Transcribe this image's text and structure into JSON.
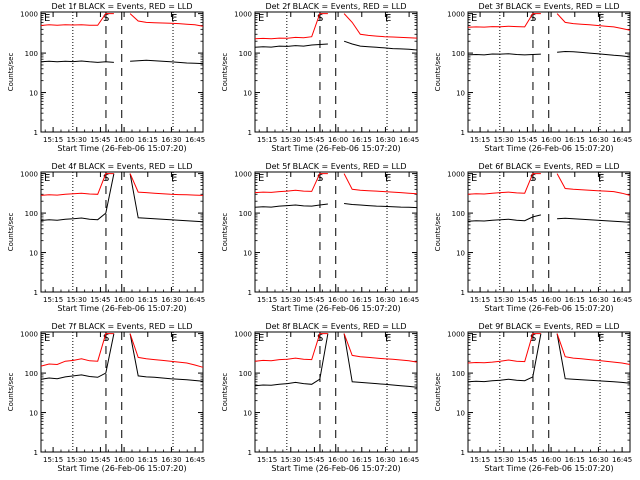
{
  "chart_data": [
    {
      "type": "line",
      "title": "Det 1f BLACK = Events, RED = LLD",
      "xlabel": "Start Time (26-Feb-06 15:07:20)",
      "ylabel": "Counts/sec",
      "xticks": [
        "15:15",
        "15:30",
        "15:45",
        "16:00",
        "16:15",
        "16:30",
        "16:45"
      ],
      "yticks": [
        "1",
        "10",
        "100",
        "1000"
      ],
      "ylog": true,
      "ylim": [
        1,
        1100
      ],
      "xlim": [
        "15:07:20",
        "16:50:00"
      ],
      "markers": [
        "E",
        "S",
        "E"
      ],
      "colors": {
        "events": "#000000",
        "lld": "#ff0000"
      },
      "series": [
        {
          "name": "BLACK = Events",
          "values": [
            60,
            62,
            60,
            62,
            61,
            63,
            60,
            58,
            60,
            58,
            "gap",
            62,
            64,
            66,
            64,
            62,
            60,
            58,
            56,
            55,
            54
          ]
        },
        {
          "name": "RED = LLD",
          "values": [
            500,
            520,
            510,
            520,
            515,
            525,
            510,
            505,
            1000,
            1000,
            "gap",
            1000,
            650,
            600,
            590,
            580,
            570,
            560,
            540,
            520,
            480
          ]
        }
      ]
    },
    {
      "type": "line",
      "title": "Det 2f BLACK = Events, RED = LLD",
      "xlabel": "Start Time (26-Feb-06 15:07:20)",
      "ylabel": "Counts/sec",
      "xticks": [
        "15:15",
        "15:30",
        "15:45",
        "16:00",
        "16:15",
        "16:30",
        "16:45"
      ],
      "yticks": [
        "1",
        "10",
        "100",
        "1000"
      ],
      "ylog": true,
      "ylim": [
        1,
        1100
      ],
      "xlim": [
        "15:07:20",
        "16:50:00"
      ],
      "markers": [
        "E",
        "S",
        "E"
      ],
      "colors": {
        "events": "#000000",
        "lld": "#ff0000"
      },
      "series": [
        {
          "name": "BLACK = Events",
          "values": [
            140,
            145,
            142,
            150,
            148,
            155,
            150,
            160,
            165,
            170,
            "gap",
            200,
            170,
            150,
            145,
            140,
            135,
            130,
            128,
            125,
            120
          ]
        },
        {
          "name": "RED = LLD",
          "values": [
            230,
            235,
            230,
            240,
            238,
            250,
            245,
            260,
            1000,
            1000,
            "gap",
            1000,
            600,
            300,
            280,
            270,
            260,
            255,
            250,
            245,
            240
          ]
        }
      ]
    },
    {
      "type": "line",
      "title": "Det 3f BLACK = Events, RED = LLD",
      "xlabel": "Start Time (26-Feb-06 15:07:20)",
      "ylabel": "Counts/sec",
      "xticks": [
        "15:15",
        "15:30",
        "15:45",
        "16:00",
        "16:15",
        "16:30",
        "16:45"
      ],
      "yticks": [
        "1",
        "10",
        "100",
        "1000"
      ],
      "ylog": true,
      "ylim": [
        1,
        1100
      ],
      "xlim": [
        "15:07:20",
        "16:50:00"
      ],
      "markers": [
        "E",
        "S",
        "E"
      ],
      "colors": {
        "events": "#000000",
        "lld": "#ff0000"
      },
      "series": [
        {
          "name": "BLACK = Events",
          "values": [
            90,
            92,
            90,
            95,
            94,
            96,
            92,
            90,
            92,
            94,
            "gap",
            105,
            110,
            108,
            104,
            100,
            96,
            92,
            88,
            85,
            80
          ]
        },
        {
          "name": "RED = LLD",
          "values": [
            450,
            460,
            455,
            470,
            465,
            480,
            470,
            460,
            1000,
            1000,
            "gap",
            1000,
            600,
            560,
            540,
            520,
            500,
            480,
            460,
            420,
            380
          ]
        }
      ]
    },
    {
      "type": "line",
      "title": "Det 4f BLACK = Events, RED = LLD",
      "xlabel": "Start Time (26-Feb-06 15:07:20)",
      "ylabel": "Counts/sec",
      "xticks": [
        "15:15",
        "15:30",
        "15:45",
        "16:00",
        "16:15",
        "16:30",
        "16:45"
      ],
      "yticks": [
        "1",
        "10",
        "100",
        "1000"
      ],
      "ylog": true,
      "ylim": [
        1,
        1100
      ],
      "xlim": [
        "15:07:20",
        "16:50:00"
      ],
      "markers": [
        "E",
        "S",
        "E"
      ],
      "colors": {
        "events": "#000000",
        "lld": "#ff0000"
      },
      "series": [
        {
          "name": "BLACK = Events",
          "values": [
            65,
            68,
            66,
            70,
            72,
            75,
            70,
            68,
            100,
            1000,
            "gap",
            1000,
            76,
            74,
            72,
            70,
            68,
            66,
            64,
            62,
            60
          ]
        },
        {
          "name": "RED = LLD",
          "values": [
            280,
            290,
            285,
            300,
            310,
            320,
            305,
            300,
            1000,
            1000,
            "gap",
            1000,
            340,
            330,
            320,
            310,
            300,
            295,
            290,
            285,
            280
          ]
        }
      ]
    },
    {
      "type": "line",
      "title": "Det 5f BLACK = Events, RED = LLD",
      "xlabel": "Start Time (26-Feb-06 15:07:20)",
      "ylabel": "Counts/sec",
      "xticks": [
        "15:15",
        "15:30",
        "15:45",
        "16:00",
        "16:15",
        "16:30",
        "16:45"
      ],
      "yticks": [
        "1",
        "10",
        "100",
        "1000"
      ],
      "ylog": true,
      "ylim": [
        1,
        1100
      ],
      "xlim": [
        "15:07:20",
        "16:50:00"
      ],
      "markers": [
        "E",
        "S",
        "E"
      ],
      "colors": {
        "events": "#000000",
        "lld": "#ff0000"
      },
      "series": [
        {
          "name": "BLACK = Events",
          "values": [
            140,
            145,
            142,
            150,
            155,
            160,
            152,
            150,
            160,
            170,
            "gap",
            175,
            165,
            160,
            155,
            150,
            148,
            145,
            142,
            140,
            138
          ]
        },
        {
          "name": "RED = LLD",
          "values": [
            330,
            340,
            335,
            350,
            360,
            380,
            360,
            355,
            1000,
            1000,
            "gap",
            1000,
            400,
            380,
            370,
            360,
            350,
            340,
            330,
            320,
            310
          ]
        }
      ]
    },
    {
      "type": "line",
      "title": "Det 6f BLACK = Events, RED = LLD",
      "xlabel": "Start Time (26-Feb-06 15:07:20)",
      "ylabel": "Counts/sec",
      "xticks": [
        "15:15",
        "15:30",
        "15:45",
        "16:00",
        "16:15",
        "16:30",
        "16:45"
      ],
      "yticks": [
        "1",
        "10",
        "100",
        "1000"
      ],
      "ylog": true,
      "ylim": [
        1,
        1100
      ],
      "xlim": [
        "15:07:20",
        "16:50:00"
      ],
      "markers": [
        "E",
        "S",
        "E"
      ],
      "colors": {
        "events": "#000000",
        "lld": "#ff0000"
      },
      "series": [
        {
          "name": "BLACK = Events",
          "values": [
            62,
            64,
            63,
            66,
            68,
            70,
            66,
            64,
            80,
            90,
            "gap",
            72,
            74,
            72,
            70,
            68,
            66,
            64,
            62,
            60,
            58
          ]
        },
        {
          "name": "RED = LLD",
          "values": [
            300,
            310,
            305,
            320,
            330,
            340,
            325,
            320,
            1000,
            1000,
            "gap",
            1000,
            420,
            400,
            390,
            380,
            370,
            360,
            350,
            320,
            280
          ]
        }
      ]
    },
    {
      "type": "line",
      "title": "Det 7f BLACK = Events, RED = LLD",
      "xlabel": "Start Time (26-Feb-06 15:07:20)",
      "ylabel": "Counts/sec",
      "xticks": [
        "15:15",
        "15:30",
        "15:45",
        "16:00",
        "16:15",
        "16:30",
        "16:45"
      ],
      "yticks": [
        "1",
        "10",
        "100",
        "1000"
      ],
      "ylog": true,
      "ylim": [
        1,
        1100
      ],
      "xlim": [
        "15:07:20",
        "16:50:00"
      ],
      "markers": [
        "E",
        "S",
        "E"
      ],
      "colors": {
        "events": "#000000",
        "lld": "#ff0000"
      },
      "series": [
        {
          "name": "BLACK = Events",
          "values": [
            70,
            75,
            72,
            80,
            85,
            90,
            82,
            78,
            100,
            1000,
            "gap",
            1000,
            85,
            80,
            78,
            75,
            72,
            70,
            68,
            65,
            62
          ]
        },
        {
          "name": "RED = LLD",
          "values": [
            150,
            170,
            165,
            200,
            210,
            230,
            205,
            200,
            1000,
            1000,
            "gap",
            1000,
            250,
            230,
            220,
            210,
            200,
            190,
            180,
            160,
            140
          ]
        }
      ]
    },
    {
      "type": "line",
      "title": "Det 8f BLACK = Events, RED = LLD",
      "xlabel": "Start Time (26-Feb-06 15:07:20)",
      "ylabel": "Counts/sec",
      "xticks": [
        "15:15",
        "15:30",
        "15:45",
        "16:00",
        "16:15",
        "16:30",
        "16:45"
      ],
      "yticks": [
        "1",
        "10",
        "100",
        "1000"
      ],
      "ylog": true,
      "ylim": [
        1,
        1100
      ],
      "xlim": [
        "15:07:20",
        "16:50:00"
      ],
      "markers": [
        "E",
        "S",
        "E"
      ],
      "colors": {
        "events": "#000000",
        "lld": "#ff0000"
      },
      "series": [
        {
          "name": "BLACK = Events",
          "values": [
            48,
            50,
            49,
            52,
            54,
            58,
            54,
            52,
            70,
            1000,
            "gap",
            1000,
            60,
            58,
            56,
            54,
            52,
            50,
            48,
            46,
            44
          ]
        },
        {
          "name": "RED = LLD",
          "values": [
            200,
            210,
            205,
            220,
            225,
            240,
            225,
            220,
            1000,
            1000,
            "gap",
            1000,
            280,
            260,
            250,
            240,
            230,
            225,
            215,
            205,
            190
          ]
        }
      ]
    },
    {
      "type": "line",
      "title": "Det 9f BLACK = Events, RED = LLD",
      "xlabel": "Start Time (26-Feb-06 15:07:20)",
      "ylabel": "Counts/sec",
      "xticks": [
        "15:15",
        "15:30",
        "15:45",
        "16:00",
        "16:15",
        "16:30",
        "16:45"
      ],
      "yticks": [
        "1",
        "10",
        "100",
        "1000"
      ],
      "ylog": true,
      "ylim": [
        1,
        1100
      ],
      "xlim": [
        "15:07:20",
        "16:50:00"
      ],
      "markers": [
        "E",
        "S",
        "E"
      ],
      "colors": {
        "events": "#000000",
        "lld": "#ff0000"
      },
      "series": [
        {
          "name": "BLACK = Events",
          "values": [
            60,
            62,
            61,
            64,
            66,
            70,
            66,
            64,
            80,
            1000,
            "gap",
            1000,
            72,
            70,
            68,
            66,
            64,
            62,
            60,
            58,
            55
          ]
        },
        {
          "name": "RED = LLD",
          "values": [
            180,
            185,
            182,
            190,
            200,
            215,
            200,
            195,
            1000,
            1000,
            "gap",
            1000,
            260,
            240,
            230,
            220,
            210,
            200,
            190,
            180,
            165
          ]
        }
      ]
    }
  ]
}
